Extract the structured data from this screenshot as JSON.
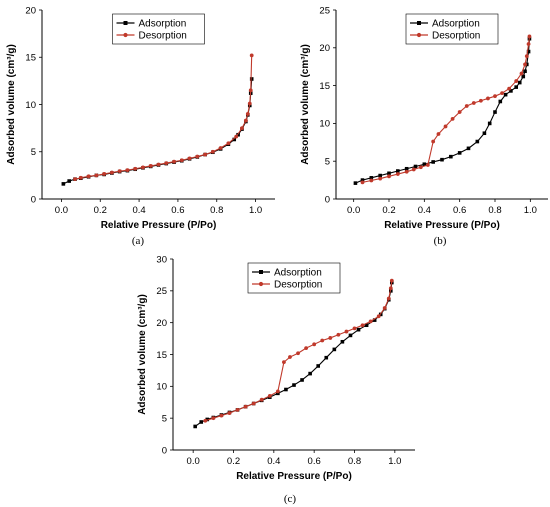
{
  "chart_data": [
    {
      "type": "line",
      "panel_label": "(a)",
      "xlabel": "Relative Pressure (P/Po)",
      "ylabel": "Adsorbed volume (cm³/g)",
      "xlim": [
        -0.1,
        1.1
      ],
      "ylim": [
        0,
        20
      ],
      "xticks": [
        0.0,
        0.2,
        0.4,
        0.6,
        0.8,
        1.0
      ],
      "xtick_labels": [
        "0.0",
        "0.2",
        "0.4",
        "0.6",
        "0.8",
        "1.0"
      ],
      "yticks": [
        0,
        5,
        10,
        15,
        20
      ],
      "ytick_labels": [
        "0",
        "5",
        "10",
        "15",
        "20"
      ],
      "legend_position": "top-center",
      "series": [
        {
          "name": "Adsorption",
          "color": "#000000",
          "marker": "square",
          "x": [
            0.01,
            0.04,
            0.07,
            0.1,
            0.14,
            0.18,
            0.22,
            0.26,
            0.3,
            0.34,
            0.38,
            0.42,
            0.46,
            0.5,
            0.54,
            0.58,
            0.62,
            0.66,
            0.7,
            0.74,
            0.78,
            0.82,
            0.86,
            0.89,
            0.91,
            0.93,
            0.95,
            0.96,
            0.97,
            0.975,
            0.98
          ],
          "y": [
            1.6,
            1.9,
            2.1,
            2.2,
            2.35,
            2.5,
            2.6,
            2.75,
            2.9,
            3.0,
            3.15,
            3.3,
            3.45,
            3.6,
            3.75,
            3.9,
            4.05,
            4.25,
            4.45,
            4.7,
            4.95,
            5.3,
            5.8,
            6.3,
            6.8,
            7.4,
            8.2,
            8.9,
            9.9,
            11.2,
            12.7
          ]
        },
        {
          "name": "Desorption",
          "color": "#c0392b",
          "marker": "circle",
          "x": [
            0.98,
            0.975,
            0.97,
            0.96,
            0.95,
            0.93,
            0.9,
            0.86,
            0.82,
            0.78,
            0.74,
            0.7,
            0.66,
            0.62,
            0.58,
            0.54,
            0.5,
            0.46,
            0.42,
            0.38,
            0.34,
            0.3,
            0.26,
            0.22,
            0.18,
            0.14,
            0.1,
            0.07
          ],
          "y": [
            15.2,
            11.5,
            10.1,
            9.0,
            8.3,
            7.5,
            6.6,
            5.9,
            5.4,
            5.0,
            4.7,
            4.5,
            4.3,
            4.1,
            3.95,
            3.8,
            3.65,
            3.5,
            3.35,
            3.2,
            3.05,
            2.95,
            2.8,
            2.65,
            2.5,
            2.4,
            2.25,
            2.1
          ]
        }
      ]
    },
    {
      "type": "line",
      "panel_label": "(b)",
      "xlabel": "Relative Pressure (P/Po)",
      "ylabel": "Adsorbed volume (cm³/g)",
      "xlim": [
        -0.1,
        1.1
      ],
      "ylim": [
        0,
        25
      ],
      "xticks": [
        0.0,
        0.2,
        0.4,
        0.6,
        0.8,
        1.0
      ],
      "xtick_labels": [
        "0.0",
        "0.2",
        "0.4",
        "0.6",
        "0.8",
        "1.0"
      ],
      "yticks": [
        0,
        5,
        10,
        15,
        20,
        25
      ],
      "ytick_labels": [
        "0",
        "5",
        "10",
        "15",
        "20",
        "25"
      ],
      "legend_position": "top-center",
      "series": [
        {
          "name": "Adsorption",
          "color": "#000000",
          "marker": "square",
          "x": [
            0.01,
            0.05,
            0.1,
            0.15,
            0.2,
            0.25,
            0.3,
            0.35,
            0.4,
            0.45,
            0.5,
            0.55,
            0.6,
            0.65,
            0.7,
            0.74,
            0.77,
            0.8,
            0.83,
            0.86,
            0.89,
            0.92,
            0.94,
            0.96,
            0.97,
            0.98,
            0.99,
            0.995
          ],
          "y": [
            2.1,
            2.5,
            2.8,
            3.1,
            3.4,
            3.7,
            4.0,
            4.3,
            4.6,
            4.9,
            5.2,
            5.6,
            6.1,
            6.7,
            7.6,
            8.7,
            10.0,
            11.5,
            12.9,
            13.8,
            14.3,
            14.8,
            15.4,
            16.2,
            16.9,
            17.8,
            19.5,
            21.2
          ]
        },
        {
          "name": "Desorption",
          "color": "#c0392b",
          "marker": "circle",
          "x": [
            0.995,
            0.99,
            0.98,
            0.97,
            0.95,
            0.92,
            0.88,
            0.84,
            0.8,
            0.76,
            0.72,
            0.68,
            0.64,
            0.6,
            0.56,
            0.52,
            0.48,
            0.45,
            0.42,
            0.38,
            0.34,
            0.3,
            0.25,
            0.2,
            0.15,
            0.1,
            0.05
          ],
          "y": [
            21.5,
            20.5,
            18.9,
            17.8,
            16.6,
            15.6,
            14.6,
            14.0,
            13.6,
            13.3,
            13.0,
            12.7,
            12.3,
            11.5,
            10.6,
            9.6,
            8.6,
            7.6,
            4.5,
            4.2,
            3.9,
            3.6,
            3.3,
            3.0,
            2.7,
            2.45,
            2.2
          ]
        }
      ]
    },
    {
      "type": "line",
      "panel_label": "(c)",
      "xlabel": "Relative Pressure (P/Po)",
      "ylabel": "Adsorbed volume (cm³/g)",
      "xlim": [
        -0.1,
        1.1
      ],
      "ylim": [
        0,
        30
      ],
      "xticks": [
        0.0,
        0.2,
        0.4,
        0.6,
        0.8,
        1.0
      ],
      "xtick_labels": [
        "0.0",
        "0.2",
        "0.4",
        "0.6",
        "0.8",
        "1.0"
      ],
      "yticks": [
        0,
        5,
        10,
        15,
        20,
        25,
        30
      ],
      "ytick_labels": [
        "0",
        "5",
        "10",
        "15",
        "20",
        "25",
        "30"
      ],
      "legend_position": "top-center",
      "series": [
        {
          "name": "Adsorption",
          "color": "#000000",
          "marker": "square",
          "x": [
            0.01,
            0.04,
            0.07,
            0.1,
            0.14,
            0.18,
            0.22,
            0.26,
            0.3,
            0.34,
            0.38,
            0.42,
            0.46,
            0.5,
            0.54,
            0.58,
            0.62,
            0.66,
            0.7,
            0.74,
            0.78,
            0.82,
            0.86,
            0.9,
            0.93,
            0.95,
            0.97,
            0.98,
            0.985
          ],
          "y": [
            3.7,
            4.4,
            4.8,
            5.1,
            5.5,
            5.9,
            6.3,
            6.8,
            7.3,
            7.8,
            8.3,
            8.9,
            9.5,
            10.2,
            11.0,
            12.0,
            13.2,
            14.5,
            15.8,
            17.0,
            18.0,
            18.9,
            19.6,
            20.4,
            21.3,
            22.2,
            23.6,
            25.0,
            26.3
          ]
        },
        {
          "name": "Desorption",
          "color": "#c0392b",
          "marker": "circle",
          "x": [
            0.985,
            0.98,
            0.97,
            0.95,
            0.92,
            0.88,
            0.84,
            0.8,
            0.76,
            0.72,
            0.68,
            0.64,
            0.6,
            0.56,
            0.52,
            0.48,
            0.45,
            0.42,
            0.38,
            0.34,
            0.3,
            0.26,
            0.22,
            0.18,
            0.14,
            0.1,
            0.06
          ],
          "y": [
            26.6,
            25.4,
            23.8,
            22.3,
            21.0,
            20.2,
            19.6,
            19.1,
            18.6,
            18.1,
            17.6,
            17.2,
            16.6,
            16.0,
            15.2,
            14.6,
            13.8,
            9.2,
            8.5,
            7.9,
            7.3,
            6.8,
            6.3,
            5.8,
            5.4,
            5.0,
            4.6
          ]
        }
      ]
    }
  ]
}
